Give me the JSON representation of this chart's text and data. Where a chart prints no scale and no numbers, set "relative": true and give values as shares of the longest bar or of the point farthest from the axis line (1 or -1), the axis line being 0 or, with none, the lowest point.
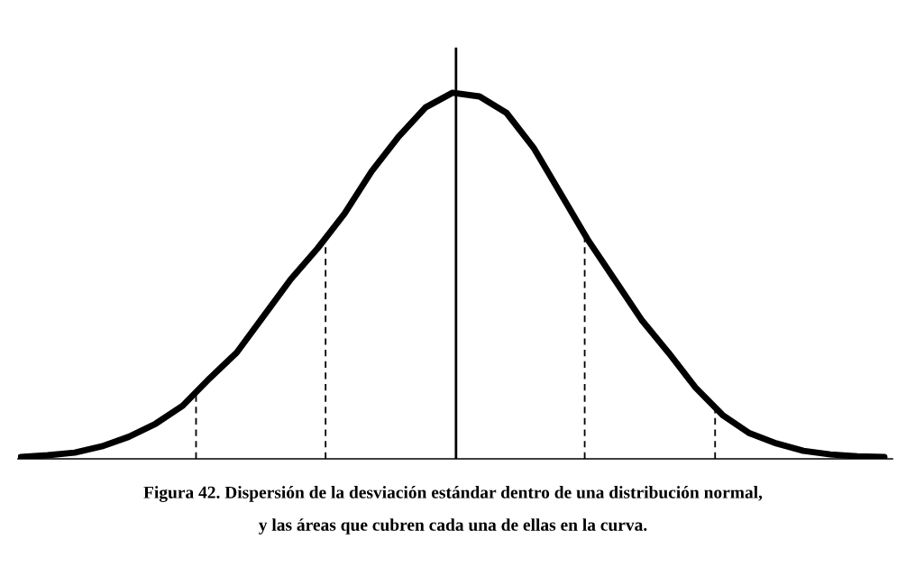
{
  "chart_data": {
    "type": "line",
    "relative": true,
    "categories": [
      null,
      null,
      null,
      null,
      null,
      null,
      null,
      null,
      null,
      null,
      null,
      null,
      null,
      null,
      null,
      null,
      null,
      null,
      null,
      null,
      null,
      null,
      null,
      null,
      null,
      null,
      null,
      null,
      null,
      null,
      null,
      null,
      null
    ],
    "series": [
      {
        "color": "#000000",
        "values": [
          0.005,
          0.01,
          0.017,
          0.034,
          0.06,
          0.096,
          0.145,
          0.22,
          0.29,
          0.39,
          0.49,
          0.575,
          0.67,
          0.785,
          0.88,
          0.96,
          1.0,
          0.99,
          0.945,
          0.85,
          0.725,
          0.6,
          0.49,
          0.38,
          0.29,
          0.195,
          0.12,
          0.07,
          0.042,
          0.022,
          0.012,
          0.007,
          0.005
        ]
      }
    ],
    "annotations": [
      "Figura 42. Dispersión de la desviación estándar dentro de una distribución normal,",
      "y las áreas que cubren cada una de ellas en la curva."
    ],
    "grid": false,
    "marker": "none",
    "line_style": "solid"
  }
}
